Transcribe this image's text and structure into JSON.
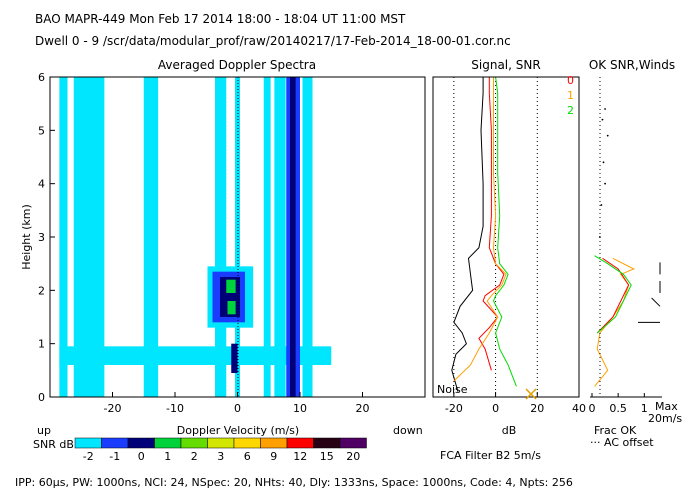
{
  "header": {
    "line1": "BAO  MAPR-449  Mon Feb 17 2014 18:00 - 18:04 UT 11:00 MST",
    "line2": "Dwell  0 -  9   /scr/data/modular_prof/raw/20140217/17-Feb-2014_18-00-01.cor.nc"
  },
  "footer": "IPP:  60µs,  PW: 1000ns,  NCI:  24,  NSpec: 20, NHts: 40,  Dly: 1333ns,  Space: 1000ns,  Code: 4,  Npts: 256",
  "colors": {
    "cyan": "#00e6ff",
    "blue": "#1a3cff",
    "darkblue": "#000078",
    "green": "#00d23c",
    "red": "#ff0000",
    "orange": "#ffa000",
    "brightgreen": "#00dc00"
  },
  "chart_data": [
    {
      "type": "heatmap",
      "title": "Averaged Doppler Spectra",
      "xlabel": "Doppler Velocity (m/s)",
      "ylabel": "Height (km)",
      "xlim": [
        -30,
        30
      ],
      "ylim": [
        0,
        6
      ],
      "xticks": [
        -20,
        -10,
        0,
        10,
        20
      ],
      "yticks": [
        0,
        1,
        2,
        3,
        4,
        5,
        6
      ],
      "label_left": "up",
      "label_right": "down",
      "colorbar": {
        "title": "SNR dB",
        "ticks": [
          "-2",
          "-1",
          "0",
          "1",
          "2",
          "3",
          "6",
          "9",
          "12",
          "15",
          "20"
        ],
        "colors": [
          "#00e6ff",
          "#1a3cff",
          "#000078",
          "#00d23c",
          "#64dc00",
          "#d2e600",
          "#ffd700",
          "#ffa000",
          "#ff0000",
          "#280014",
          "#500064"
        ]
      },
      "regions": [
        {
          "v": [
            -28.5,
            -27.2
          ],
          "h": [
            0,
            6
          ],
          "level": "cyan"
        },
        {
          "v": [
            -26.2,
            -21.3
          ],
          "h": [
            0,
            6
          ],
          "level": "cyan"
        },
        {
          "v": [
            -15.0,
            -12.7
          ],
          "h": [
            0,
            6
          ],
          "level": "cyan"
        },
        {
          "v": [
            -3.6,
            -1.8
          ],
          "h": [
            0,
            6
          ],
          "level": "cyan"
        },
        {
          "v": [
            -0.4,
            0.4
          ],
          "h": [
            0,
            6
          ],
          "level": "cyan"
        },
        {
          "v": [
            4.2,
            5.3
          ],
          "h": [
            0,
            6
          ],
          "level": "cyan"
        },
        {
          "v": [
            5.9,
            7.7
          ],
          "h": [
            0,
            6
          ],
          "level": "cyan"
        },
        {
          "v": [
            10.4,
            12.0
          ],
          "h": [
            0,
            6
          ],
          "level": "cyan"
        },
        {
          "v": [
            -28.5,
            15.0
          ],
          "h": [
            0.6,
            0.95
          ],
          "level": "cyan"
        },
        {
          "v": [
            -4.8,
            2.5
          ],
          "h": [
            1.3,
            2.45
          ],
          "level": "cyan"
        },
        {
          "v": [
            -4.0,
            1.2
          ],
          "h": [
            1.4,
            2.35
          ],
          "level": "blue"
        },
        {
          "v": [
            -2.8,
            0.4
          ],
          "h": [
            1.5,
            2.25
          ],
          "level": "darkblue"
        },
        {
          "v": [
            -1.0,
            0.0
          ],
          "h": [
            0.45,
            1.0
          ],
          "level": "darkblue"
        },
        {
          "v": [
            7.8,
            10.0
          ],
          "h": [
            0,
            6
          ],
          "level": "blue"
        },
        {
          "v": [
            8.4,
            9.3
          ],
          "h": [
            0,
            6
          ],
          "level": "darkblue"
        },
        {
          "v": [
            -1.8,
            -0.3
          ],
          "h": [
            1.95,
            2.2
          ],
          "level": "green"
        },
        {
          "v": [
            -1.6,
            -0.3
          ],
          "h": [
            1.55,
            1.8
          ],
          "level": "green"
        }
      ]
    },
    {
      "type": "line",
      "title": "Signal, SNR",
      "xlabel": "dB",
      "xlim": [
        -30,
        40
      ],
      "ylim": [
        0,
        6
      ],
      "xticks": [
        -20,
        0,
        20,
        40
      ],
      "annotation": "Noise",
      "legend": [
        "0",
        "1",
        "2"
      ],
      "series": [
        {
          "color": "#000000",
          "x": [
            -18,
            -21,
            -19,
            -14,
            -16,
            -20,
            -17,
            -11,
            -12,
            -13,
            -8,
            -6,
            -6,
            -7,
            -6,
            -6
          ],
          "y": [
            0.1,
            0.5,
            0.8,
            1.0,
            1.2,
            1.4,
            1.7,
            2.0,
            2.3,
            2.6,
            2.8,
            3.2,
            4.0,
            5.0,
            5.7,
            6.0
          ]
        },
        {
          "color": "#ff0000",
          "x": [
            -2,
            -5,
            -8,
            -3,
            1,
            -6,
            -5,
            2,
            4,
            0,
            -3,
            -2,
            -2,
            -2,
            -3,
            -3
          ],
          "y": [
            0.5,
            0.9,
            1.1,
            1.3,
            1.5,
            1.8,
            1.9,
            2.1,
            2.3,
            2.5,
            2.8,
            3.4,
            4.2,
            5.0,
            5.7,
            6.0
          ]
        },
        {
          "color": "#ffa000",
          "x": [
            -20,
            -12,
            -8,
            -3,
            1,
            -4,
            -2,
            3,
            5,
            0,
            -1,
            0,
            -1,
            -1,
            -1,
            -1
          ],
          "y": [
            0.3,
            0.6,
            0.9,
            1.2,
            1.5,
            1.8,
            1.9,
            2.1,
            2.3,
            2.5,
            2.8,
            3.4,
            4.2,
            5.0,
            5.7,
            6.0
          ]
        },
        {
          "color": "#00dc00",
          "x": [
            10,
            6,
            2,
            0,
            3,
            -1,
            0,
            4,
            6,
            2,
            1,
            2,
            1,
            1,
            1,
            0
          ],
          "y": [
            0.2,
            0.6,
            0.9,
            1.2,
            1.5,
            1.8,
            1.9,
            2.1,
            2.3,
            2.5,
            2.8,
            3.4,
            4.2,
            5.0,
            5.7,
            6.0
          ]
        }
      ]
    },
    {
      "type": "line",
      "title": "OK SNR,Winds",
      "xlabel": "Frac OK",
      "xlim": [
        0,
        1.3
      ],
      "ylim": [
        0,
        6
      ],
      "xticks": [
        "0",
        "0.5",
        "1"
      ],
      "max_label": "Max",
      "max_value": "20m/s",
      "note": "··· AC offset",
      "series": [
        {
          "color": "#ffa000",
          "x": [
            0.05,
            0.3,
            0.1,
            0.15,
            0.4,
            0.6,
            0.7,
            0.55,
            0.8,
            0.4
          ],
          "y": [
            0.2,
            0.5,
            0.9,
            1.2,
            1.5,
            1.8,
            2.1,
            2.3,
            2.4,
            2.6
          ]
        },
        {
          "color": "#ff0000",
          "x": [
            0.1,
            0.4,
            0.55,
            0.7,
            0.5,
            0.2
          ],
          "y": [
            1.2,
            1.5,
            1.8,
            2.1,
            2.4,
            2.6
          ]
        },
        {
          "color": "#00dc00",
          "x": [
            0.1,
            0.45,
            0.6,
            0.75,
            0.6,
            0.3,
            0.05
          ],
          "y": [
            1.2,
            1.5,
            1.8,
            2.1,
            2.3,
            2.5,
            2.65
          ]
        }
      ],
      "ac_offset_points": [
        [
          0.25,
          5.4
        ],
        [
          0.3,
          4.9
        ],
        [
          0.22,
          4.4
        ],
        [
          0.18,
          3.6
        ],
        [
          0.15,
          3.0
        ],
        [
          0.25,
          4.0
        ],
        [
          0.2,
          5.2
        ]
      ],
      "wind_barbs": [
        {
          "h": 2.3,
          "dir": "up"
        },
        {
          "h": 1.95,
          "dir": "up"
        },
        {
          "h": 1.7,
          "dir": "upleft"
        },
        {
          "h": 1.4,
          "dir": "left"
        }
      ]
    }
  ],
  "fca": "FCA Filter B2  5m/s"
}
